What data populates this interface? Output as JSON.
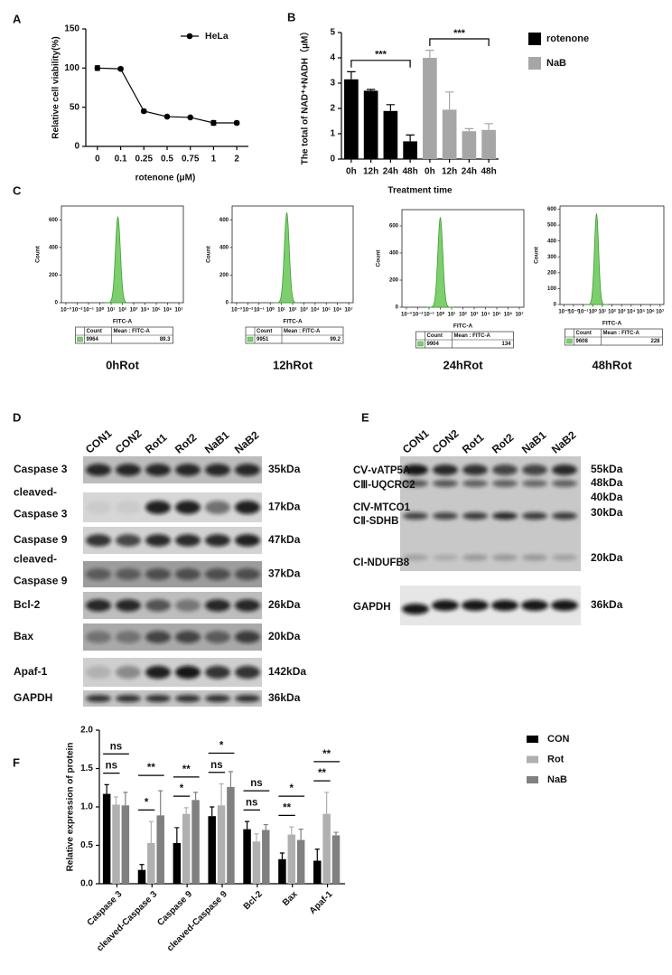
{
  "panel_labels": [
    "A",
    "B",
    "C",
    "D",
    "E",
    "F"
  ],
  "chart_data": [
    {
      "type": "line",
      "ylabel": "Relative cell viability(%)",
      "xlabel": "rotenone (μM)",
      "categories": [
        "0",
        "0.1",
        "0.25",
        "0.5",
        "0.75",
        "1",
        "2"
      ],
      "series": [
        {
          "name": "HeLa",
          "color": "#000000",
          "values": [
            100,
            99,
            45,
            38,
            37,
            30,
            30
          ],
          "errors": [
            3,
            2,
            2,
            1,
            1,
            3,
            2
          ]
        }
      ],
      "ylim": [
        0,
        150
      ],
      "yticks": [
        0,
        50,
        100,
        150
      ],
      "legend": "upper right"
    },
    {
      "type": "bar",
      "ylabel": "The total of NAD⁺+NADH（μM）",
      "xlabel": "Treatment time",
      "categories": [
        "0h",
        "12h",
        "24h",
        "48h",
        "0h",
        "12h",
        "24h",
        "48h"
      ],
      "series": [
        {
          "name": "rotenone",
          "color": "#000000",
          "values": [
            3.15,
            2.7,
            1.9,
            0.7,
            null,
            null,
            null,
            null
          ],
          "errors": [
            0.3,
            0.05,
            0.25,
            0.25,
            null,
            null,
            null,
            null
          ],
          "significance": "***"
        },
        {
          "name": "NaB",
          "color": "#a6a6a6",
          "values": [
            null,
            null,
            null,
            null,
            4.0,
            1.95,
            1.1,
            1.15
          ],
          "errors": [
            null,
            null,
            null,
            null,
            0.3,
            0.7,
            0.1,
            0.25
          ],
          "significance": "***"
        }
      ],
      "ylim": [
        0,
        5
      ],
      "yticks": [
        0,
        1,
        2,
        3,
        4,
        5
      ],
      "legend": "right"
    },
    {
      "type": "flow",
      "title": "0hRot",
      "ylabel": "Count",
      "xlabel": "FITC-A",
      "log_x": true,
      "color": "#7dcf6e",
      "xlim": [
        0.0004,
        25000000
      ],
      "xticks": [
        {
          "value": 0.001,
          "label": "10⁻³"
        },
        {
          "value": 0.01,
          "label": "10⁻²"
        },
        {
          "value": 0.1,
          "label": "10⁻¹"
        },
        {
          "value": 1,
          "label": "10⁰"
        },
        {
          "value": 10,
          "label": "10¹"
        },
        {
          "value": 100,
          "label": "10²"
        },
        {
          "value": 1000,
          "label": "10³"
        },
        {
          "value": 10000,
          "label": "10⁴"
        },
        {
          "value": 100000,
          "label": "10⁵"
        },
        {
          "value": 1000000,
          "label": "10⁶"
        },
        {
          "value": 10000000,
          "label": "10⁷"
        }
      ],
      "ylim": [
        0,
        700
      ],
      "yticks": [
        0,
        200,
        400,
        600
      ],
      "peak_x": 40,
      "peak": 620,
      "stats": {
        "headers": [
          "Count",
          "Mean : FITC-A"
        ],
        "values": [
          9964,
          89.3
        ]
      }
    },
    {
      "type": "flow",
      "title": "12hRot",
      "ylabel": "Count",
      "xlabel": "FITC-A",
      "log_x": true,
      "color": "#7dcf6e",
      "xlim": [
        0.0004,
        25000000
      ],
      "xticks": [
        {
          "value": 0.001,
          "label": "10⁻³"
        },
        {
          "value": 0.01,
          "label": "10⁻²"
        },
        {
          "value": 0.1,
          "label": "10⁻¹"
        },
        {
          "value": 1,
          "label": "10⁰"
        },
        {
          "value": 10,
          "label": "10¹"
        },
        {
          "value": 100,
          "label": "10²"
        },
        {
          "value": 1000,
          "label": "10³"
        },
        {
          "value": 10000,
          "label": "10⁴"
        },
        {
          "value": 100000,
          "label": "10⁵"
        },
        {
          "value": 1000000,
          "label": "10⁶"
        },
        {
          "value": 10000000,
          "label": "10⁷"
        }
      ],
      "ylim": [
        0,
        700
      ],
      "yticks": [
        0,
        200,
        400,
        600
      ],
      "peak_x": 30,
      "peak": 650,
      "stats": {
        "headers": [
          "Count",
          "Mean : FITC-A"
        ],
        "values": [
          9951,
          99.2
        ]
      }
    },
    {
      "type": "flow",
      "title": "24hRot",
      "ylabel": "Count",
      "xlabel": "FITC-A",
      "log_x": true,
      "color": "#7dcf6e",
      "xlim": [
        0.0004,
        25000000
      ],
      "xticks": [
        {
          "value": 0.001,
          "label": "10⁻³"
        },
        {
          "value": 0.01,
          "label": "10⁻²"
        },
        {
          "value": 0.1,
          "label": "10⁻¹"
        },
        {
          "value": 1,
          "label": "10⁰"
        },
        {
          "value": 10,
          "label": "10¹"
        },
        {
          "value": 100,
          "label": "10²"
        },
        {
          "value": 1000,
          "label": "10³"
        },
        {
          "value": 10000,
          "label": "10⁴"
        },
        {
          "value": 100000,
          "label": "10⁵"
        },
        {
          "value": 1000000,
          "label": "10⁶"
        },
        {
          "value": 10000000,
          "label": "10⁷"
        }
      ],
      "ylim": [
        0,
        720
      ],
      "yticks": [
        0,
        200,
        400,
        600
      ],
      "peak_x": 1,
      "peak": 660,
      "stats": {
        "headers": [
          "Count",
          "Mean : FITC-A"
        ],
        "values": [
          9904,
          134
        ]
      }
    },
    {
      "type": "flow",
      "title": "48hRot",
      "ylabel": "Count",
      "xlabel": "FITC-A",
      "log_x": true,
      "color": "#7dcf6e",
      "xlim": [
        0.0004,
        25000000
      ],
      "xticks": [
        {
          "value": 0.001,
          "label": "10⁻³"
        },
        {
          "value": 0.01,
          "label": "10⁻²"
        },
        {
          "value": 0.1,
          "label": "10⁻¹"
        },
        {
          "value": 1,
          "label": "10⁰"
        },
        {
          "value": 10,
          "label": "10¹"
        },
        {
          "value": 100,
          "label": "10²"
        },
        {
          "value": 1000,
          "label": "10³"
        },
        {
          "value": 10000,
          "label": "10⁴"
        },
        {
          "value": 100000,
          "label": "10⁵"
        },
        {
          "value": 1000000,
          "label": "10⁶"
        },
        {
          "value": 10000000,
          "label": "10⁷"
        }
      ],
      "ylim": [
        0,
        620
      ],
      "yticks": [
        0,
        100,
        200,
        300,
        400,
        500,
        600
      ],
      "peak_x": 2.5,
      "peak": 570,
      "stats": {
        "headers": [
          "Count",
          "Mean : FITC-A"
        ],
        "values": [
          9608,
          228
        ]
      }
    },
    {
      "type": "bar",
      "ylabel": "Relative expression of protein",
      "categories": [
        "Caspase 3",
        "cleaved-Caspase 3",
        "Caspase 9",
        "cleaved-Caspase 9",
        "Bcl-2",
        "Bax",
        "Apaf-1"
      ],
      "series": [
        {
          "name": "CON",
          "color": "#000000",
          "values": [
            1.17,
            0.18,
            0.53,
            0.88,
            0.71,
            0.32,
            0.3
          ],
          "errors": [
            0.12,
            0.07,
            0.2,
            0.12,
            0.1,
            0.08,
            0.15
          ]
        },
        {
          "name": "Rot",
          "color": "#b0b0b0",
          "values": [
            1.03,
            0.53,
            0.91,
            1.02,
            0.55,
            0.64,
            0.91
          ],
          "errors": [
            0.1,
            0.28,
            0.08,
            0.28,
            0.1,
            0.1,
            0.28
          ]
        },
        {
          "name": "NaB",
          "color": "#808080",
          "values": [
            1.02,
            0.89,
            1.09,
            1.26,
            0.7,
            0.57,
            0.63
          ],
          "errors": [
            0.17,
            0.32,
            0.1,
            0.2,
            0.07,
            0.14,
            0.04
          ]
        }
      ],
      "significance": [
        [
          "ns",
          "ns"
        ],
        [
          "**",
          "*"
        ],
        [
          "**",
          "*"
        ],
        [
          "*",
          "ns"
        ],
        [
          "ns",
          "ns"
        ],
        [
          "*",
          "**"
        ],
        [
          "**",
          "**"
        ]
      ],
      "ylim": [
        0,
        2
      ],
      "yticks": [
        {
          "value": 0,
          "label": "0.0"
        },
        {
          "value": 0.5,
          "label": "0.5"
        },
        {
          "value": 1,
          "label": "1.0"
        },
        {
          "value": 1.5,
          "label": "1.5"
        },
        {
          "value": 2,
          "label": "2.0"
        }
      ],
      "legend": "right"
    }
  ],
  "western_blots": [
    {
      "lanes": [
        "CON1",
        "CON2",
        "Rot1",
        "Rot2",
        "NaB1",
        "NaB2"
      ],
      "rows": [
        {
          "protein": [
            "Caspase 3"
          ],
          "size": "35kDa"
        },
        {
          "protein": [
            "cleaved-",
            "Caspase 3"
          ],
          "size": "17kDa"
        },
        {
          "protein": [
            "Caspase 9"
          ],
          "size": "47kDa"
        },
        {
          "protein": [
            "cleaved-",
            "Caspase 9"
          ],
          "size": "37kDa"
        },
        {
          "protein": [
            "Bcl-2"
          ],
          "size": "26kDa"
        },
        {
          "protein": [
            "Bax"
          ],
          "size": "20kDa"
        },
        {
          "protein": [
            "Apaf-1"
          ],
          "size": "142kDa"
        },
        {
          "protein": [
            "GAPDH"
          ],
          "size": "36kDa"
        }
      ]
    },
    {
      "lanes": [
        "CON1",
        "CON2",
        "Rot1",
        "Rot2",
        "NaB1",
        "NaB2"
      ],
      "labels": [
        "CⅤ-vATP5A",
        "CⅢ-UQCRC2",
        "CⅣ-MTCO1",
        "CⅡ-SDHB",
        "CⅠ-NDUFB8",
        "GAPDH"
      ],
      "sizes": [
        "55kDa",
        "48kDa",
        "40kDa",
        "30kDa",
        "20kDa",
        "36kDa"
      ]
    }
  ]
}
